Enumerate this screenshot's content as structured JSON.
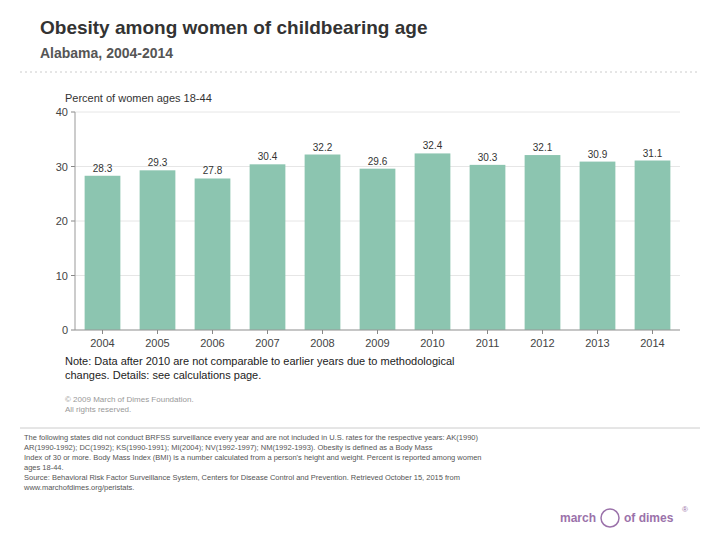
{
  "chart_data": {
    "type": "bar",
    "title": "Obesity among women of childbearing age",
    "subtitle": "Alabama, 2004-2014",
    "y_label": "Percent of women ages 18-44",
    "categories": [
      "2004",
      "2005",
      "2006",
      "2007",
      "2008",
      "2009",
      "2010",
      "2011",
      "2012",
      "2013",
      "2014"
    ],
    "values": [
      28.3,
      29.3,
      27.8,
      30.4,
      32.2,
      29.6,
      32.4,
      30.3,
      32.1,
      30.9,
      31.1
    ],
    "color": "#8cc5b0",
    "ylim": [
      0,
      40
    ],
    "yticks": [
      0,
      10,
      20,
      30,
      40
    ],
    "grid": true,
    "data_labels": true,
    "annotations": [
      "Note: Data after 2010 are not comparable to earlier years due to methodological\nchanges. Details: see calculations page.",
      "© 2009 March of Dimes Foundation.\nAll rights reserved.",
      "The following states did not conduct BRFSS surveillance every year and are not included in U.S. rates for the respective years: AK(1990)\nAR(1990-1992); DC(1992); KS(1990-1991); MI(2004); NV(1992-1997); NM(1992-1993). Obesity is defined as a Body Mass\nIndex of 30 or more. Body Mass Index (BMI) is a number calculated from a person's height and weight. Percent is reported among women\nages 18-44.\nSource: Behavioral Risk Factor Surveillance System, Centers for Disease Control and Prevention. Retrieved October 15, 2015 from\nwww.marchofdimes.org/peristats.",
      "march",
      "of dimes",
      "®"
    ]
  }
}
